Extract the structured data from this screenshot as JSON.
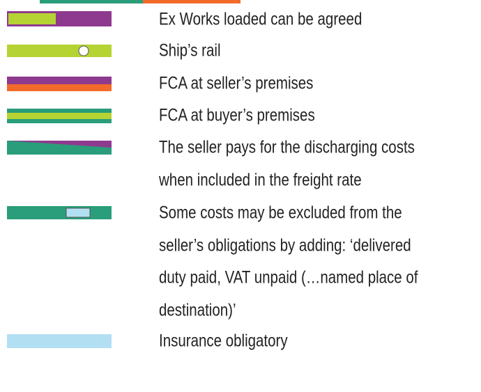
{
  "legend": {
    "items": [
      {
        "lines": [
          "Ex Works loaded can be agreed"
        ]
      },
      {
        "lines": [
          "Ship’s rail"
        ]
      },
      {
        "lines": [
          "FCA at seller’s premises"
        ]
      },
      {
        "lines": [
          "FCA at buyer’s premises"
        ]
      },
      {
        "lines": [
          "The seller pays for the discharging costs",
          "when included in the freight rate"
        ]
      },
      {
        "lines": [
          "Some costs may be excluded from the",
          "seller’s obligations by adding: ‘delivered",
          "duty paid, VAT unpaid (…named place of",
          "destination)’"
        ]
      },
      {
        "lines": [
          "Insurance obligatory"
        ]
      }
    ]
  }
}
